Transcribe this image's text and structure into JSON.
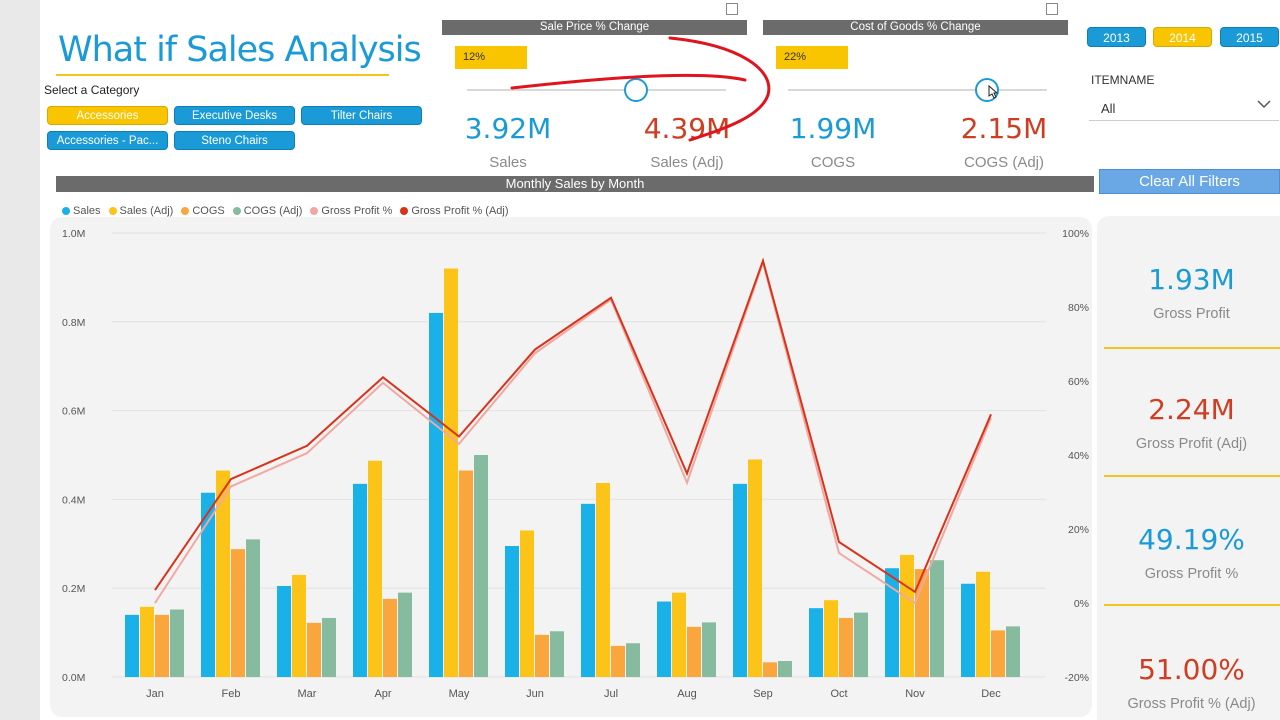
{
  "header": {
    "title": "What if Sales Analysis",
    "category_label": "Select a Category"
  },
  "categories": [
    {
      "label": "Accessories",
      "selected": true
    },
    {
      "label": "Executive Desks",
      "selected": false
    },
    {
      "label": "Tilter Chairs",
      "selected": false
    },
    {
      "label": "Accessories - Pac...",
      "selected": false
    },
    {
      "label": "Steno Chairs",
      "selected": false
    }
  ],
  "sale_price_slicer": {
    "title": "Sale Price % Change",
    "value": "12%"
  },
  "cogs_slicer": {
    "title": "Cost of Goods % Change",
    "value": "22%"
  },
  "kpis": [
    {
      "value": "3.92M",
      "label": "Sales"
    },
    {
      "value": "4.39M",
      "label": "Sales (Adj)"
    },
    {
      "value": "1.99M",
      "label": "COGS"
    },
    {
      "value": "2.15M",
      "label": "COGS (Adj)"
    }
  ],
  "years": [
    {
      "label": "2013",
      "selected": false
    },
    {
      "label": "2014",
      "selected": true
    },
    {
      "label": "2015",
      "selected": false
    }
  ],
  "itemname": {
    "label": "ITEMNAME",
    "value": "All"
  },
  "clear_button": "Clear All Filters",
  "side_kpis": [
    {
      "value": "1.93M",
      "label": "Gross Profit"
    },
    {
      "value": "2.24M",
      "label": "Gross Profit (Adj)"
    },
    {
      "value": "49.19%",
      "label": "Gross Profit %"
    },
    {
      "value": "51.00%",
      "label": "Gross Profit % (Adj)"
    }
  ],
  "colors": {
    "accent_blue": "#1a9bd7",
    "accent_yellow": "#f9c400",
    "kpi_red": "#cf3e22",
    "annotation_red": "#e0141c"
  },
  "chart_data": {
    "type": "bar",
    "title": "Monthly Sales by Month",
    "categories": [
      "Jan",
      "Feb",
      "Mar",
      "Apr",
      "May",
      "Jun",
      "Jul",
      "Aug",
      "Sep",
      "Oct",
      "Nov",
      "Dec"
    ],
    "y_axis_left": {
      "ticks": [
        "0.0M",
        "0.2M",
        "0.4M",
        "0.6M",
        "0.8M",
        "1.0M"
      ],
      "ylim": [
        0,
        1.0
      ]
    },
    "y_axis_right": {
      "ticks": [
        "-20%",
        "0%",
        "20%",
        "40%",
        "60%",
        "80%",
        "100%"
      ],
      "ylim": [
        -20,
        100
      ]
    },
    "series": [
      {
        "name": "Sales",
        "kind": "bar",
        "color": "#1ab0e8",
        "values": [
          0.14,
          0.415,
          0.205,
          0.435,
          0.82,
          0.295,
          0.39,
          0.17,
          0.435,
          0.155,
          0.245,
          0.21
        ]
      },
      {
        "name": "Sales (Adj)",
        "kind": "bar",
        "color": "#fcc419",
        "values": [
          0.158,
          0.465,
          0.23,
          0.487,
          0.92,
          0.33,
          0.437,
          0.19,
          0.49,
          0.173,
          0.275,
          0.237
        ]
      },
      {
        "name": "COGS",
        "kind": "bar",
        "color": "#fba63c",
        "values": [
          0.14,
          0.288,
          0.122,
          0.176,
          0.465,
          0.095,
          0.07,
          0.113,
          0.033,
          0.133,
          0.243,
          0.105
        ]
      },
      {
        "name": "COGS (Adj)",
        "kind": "bar",
        "color": "#86bba0",
        "values": [
          0.152,
          0.31,
          0.133,
          0.19,
          0.5,
          0.103,
          0.076,
          0.123,
          0.036,
          0.145,
          0.263,
          0.114
        ]
      },
      {
        "name": "Gross Profit %",
        "kind": "line",
        "axis": "right",
        "color": "#f1a8a2",
        "values": [
          0.0,
          31.5,
          40.5,
          59.5,
          43.0,
          67.5,
          82.0,
          32.5,
          92.0,
          13.5,
          0.0,
          50.0
        ]
      },
      {
        "name": "Gross Profit % (Adj)",
        "kind": "line",
        "axis": "right",
        "color": "#d8331a",
        "values": [
          3.5,
          33.5,
          42.5,
          61.0,
          45.0,
          68.5,
          82.5,
          35.0,
          92.5,
          16.5,
          3.0,
          51.0
        ]
      }
    ],
    "legend": "top-left",
    "grid": true
  }
}
